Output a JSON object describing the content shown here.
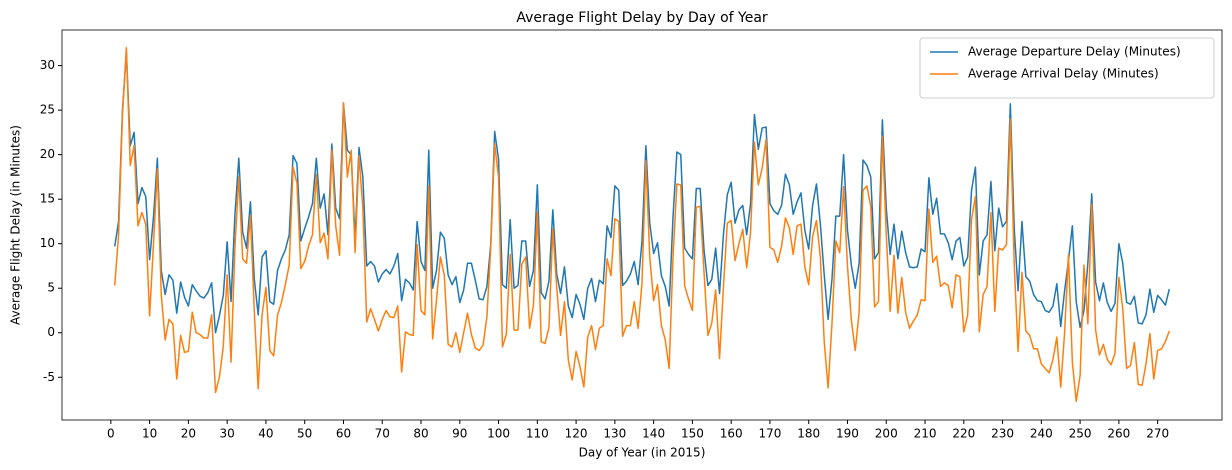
{
  "chart_data": {
    "type": "line",
    "title": "Average Flight Delay by Day of Year",
    "x_label": "Day of Year (in 2015)",
    "y_label": "Average Flight Delay (in Minutes)",
    "legend": "upper right",
    "grid": false,
    "xlim": [
      -12.6,
      286.6
    ],
    "ylim": [
      -9.8,
      34.0
    ],
    "xticks": [
      0,
      10,
      20,
      30,
      40,
      50,
      60,
      70,
      80,
      90,
      100,
      110,
      120,
      130,
      140,
      150,
      160,
      170,
      180,
      190,
      200,
      210,
      220,
      230,
      240,
      250,
      260,
      270
    ],
    "yticks": [
      -5,
      0,
      5,
      10,
      15,
      20,
      25,
      30
    ],
    "x": [
      1,
      2,
      3,
      4,
      5,
      6,
      7,
      8,
      9,
      10,
      11,
      12,
      13,
      14,
      15,
      16,
      17,
      18,
      19,
      20,
      21,
      22,
      23,
      24,
      25,
      26,
      27,
      28,
      29,
      30,
      31,
      32,
      33,
      34,
      35,
      36,
      37,
      38,
      39,
      40,
      41,
      42,
      43,
      44,
      45,
      46,
      47,
      48,
      49,
      50,
      51,
      52,
      53,
      54,
      55,
      56,
      57,
      58,
      59,
      60,
      61,
      62,
      63,
      64,
      65,
      66,
      67,
      68,
      69,
      70,
      71,
      72,
      73,
      74,
      75,
      76,
      77,
      78,
      79,
      80,
      81,
      82,
      83,
      84,
      85,
      86,
      87,
      88,
      89,
      90,
      91,
      92,
      93,
      94,
      95,
      96,
      97,
      98,
      99,
      100,
      101,
      102,
      103,
      104,
      105,
      106,
      107,
      108,
      109,
      110,
      111,
      112,
      113,
      114,
      115,
      116,
      117,
      118,
      119,
      120,
      121,
      122,
      123,
      124,
      125,
      126,
      127,
      128,
      129,
      130,
      131,
      132,
      133,
      134,
      135,
      136,
      137,
      138,
      139,
      140,
      141,
      142,
      143,
      144,
      145,
      146,
      147,
      148,
      149,
      150,
      151,
      152,
      153,
      154,
      155,
      156,
      157,
      158,
      159,
      160,
      161,
      162,
      163,
      164,
      165,
      166,
      167,
      168,
      169,
      170,
      171,
      172,
      173,
      174,
      175,
      176,
      177,
      178,
      179,
      180,
      181,
      182,
      183,
      184,
      185,
      186,
      187,
      188,
      189,
      190,
      191,
      192,
      193,
      194,
      195,
      196,
      197,
      198,
      199,
      200,
      201,
      202,
      203,
      204,
      205,
      206,
      207,
      208,
      209,
      210,
      211,
      212,
      213,
      214,
      215,
      216,
      217,
      218,
      219,
      220,
      221,
      222,
      223,
      224,
      225,
      226,
      227,
      228,
      229,
      230,
      231,
      232,
      233,
      234,
      235,
      236,
      237,
      238,
      239,
      240,
      241,
      242,
      243,
      244,
      245,
      246,
      247,
      248,
      249,
      250,
      251,
      252,
      253,
      254,
      255,
      256,
      257,
      258,
      259,
      260,
      261,
      262,
      263,
      264,
      265,
      266,
      267,
      268,
      269,
      270,
      271,
      272,
      273
    ],
    "series": [
      {
        "name": "Average Departure Delay (Minutes)",
        "color": "#1f77b4",
        "values": [
          9.7,
          12.5,
          25,
          31.5,
          21,
          22.5,
          14.5,
          16.3,
          15.3,
          8.2,
          13,
          19.6,
          7,
          4.3,
          6.5,
          5.9,
          2.2,
          5.7,
          4,
          3,
          5.4,
          4.7,
          4.1,
          3.9,
          4.5,
          5.6,
          0,
          1.9,
          4.2,
          10.2,
          3.5,
          13.2,
          19.6,
          11.3,
          9.5,
          14.7,
          6,
          2,
          8.5,
          9.2,
          3.5,
          3.2,
          7,
          8.3,
          9.3,
          11,
          19.9,
          19,
          10.3,
          11.7,
          13,
          14.5,
          19.6,
          14,
          15.6,
          11,
          21.2,
          14,
          12.8,
          25.8,
          20.5,
          20,
          10.5,
          20.8,
          17.5,
          7.5,
          8,
          7.5,
          5.7,
          6.6,
          7.1,
          6.6,
          7.5,
          8.9,
          3.6,
          6,
          5.6,
          4.8,
          12.5,
          8,
          7,
          20.5,
          5,
          7,
          11.3,
          10.6,
          6.5,
          5.4,
          6.3,
          3.4,
          4.8,
          7.8,
          7.8,
          5.9,
          3.8,
          3.7,
          5.2,
          10,
          22.6,
          19.5,
          5.4,
          5,
          12.7,
          5,
          5.3,
          10.3,
          10.3,
          5.2,
          7,
          16.6,
          4.5,
          3.8,
          5.8,
          13.8,
          6.6,
          4.4,
          7.4,
          3,
          1.7,
          4.3,
          3.2,
          1.5,
          5,
          6.1,
          3.5,
          5.9,
          5.5,
          12,
          10.7,
          16.5,
          16,
          5.3,
          5.8,
          6.6,
          8,
          5.4,
          10.3,
          21,
          12.3,
          8.9,
          10.1,
          6.4,
          5.2,
          3,
          13,
          20.3,
          20,
          9.5,
          8.8,
          8.3,
          16.2,
          16.2,
          9.3,
          5.3,
          6,
          9.5,
          4.4,
          11,
          15.5,
          16.9,
          12.3,
          13.8,
          14.3,
          11,
          14.5,
          24.5,
          20.6,
          23,
          23.1,
          14.5,
          13.7,
          13.3,
          14.3,
          17.8,
          16.6,
          13.3,
          14.7,
          15.7,
          11.5,
          9.4,
          14.3,
          16.7,
          12.2,
          6.5,
          1.5,
          6,
          13.1,
          13.1,
          20,
          11.5,
          7.6,
          5,
          7.8,
          19.4,
          18.8,
          17.5,
          8.3,
          9,
          23.9,
          14,
          8.8,
          12.2,
          8.3,
          11.4,
          9,
          7.4,
          7.3,
          7.4,
          9.4,
          9.1,
          17.4,
          13.3,
          15.1,
          11.1,
          11.1,
          10.1,
          8.2,
          10.3,
          10.7,
          7.5,
          8.5,
          16,
          18.6,
          6.5,
          10.3,
          11,
          17,
          9.2,
          14,
          11.9,
          12.5,
          25.7,
          11.8,
          4.7,
          12.5,
          6.3,
          5.8,
          4.3,
          3.6,
          3.5,
          2.5,
          2.3,
          3,
          5.5,
          0.7,
          4.7,
          8.1,
          12,
          3.5,
          0.6,
          2.5,
          7.8,
          15.6,
          5.7,
          3.6,
          5.6,
          3.4,
          2.4,
          3.3,
          10,
          7.8,
          3.4,
          3.2,
          4.1,
          1.1,
          1,
          2,
          4.9,
          2.3,
          4.2,
          3.7,
          3.1,
          4.9
        ]
      },
      {
        "name": "Average Arrival Delay (Minutes)",
        "color": "#ff7f0e",
        "values": [
          5.3,
          11,
          24.5,
          32,
          18.8,
          21,
          12,
          13.5,
          12.2,
          1.9,
          10,
          18.4,
          4.3,
          -0.8,
          1.5,
          1,
          -5.2,
          -0.3,
          -2.2,
          -2.1,
          2.3,
          0,
          -0.2,
          -0.6,
          -0.6,
          2,
          -6.7,
          -5,
          -1.5,
          6.5,
          -3.3,
          9.5,
          17.5,
          8.3,
          7.8,
          13.2,
          2.4,
          -6.3,
          2,
          5.1,
          -2,
          -2.6,
          2,
          3.4,
          5.4,
          7.6,
          18.6,
          16.8,
          7.2,
          8,
          9.7,
          11,
          17.8,
          10.1,
          11.2,
          8.3,
          20.5,
          12,
          8.7,
          25.8,
          17.5,
          20.5,
          9,
          19.9,
          14,
          1.2,
          2.7,
          1.5,
          0.2,
          1.5,
          2.5,
          1.8,
          1.7,
          3,
          -4.4,
          0.1,
          -0.2,
          -0.3,
          9.9,
          2.5,
          2,
          16.5,
          -0.7,
          3.7,
          8.5,
          6.5,
          -1.3,
          -1.6,
          0,
          -2.2,
          0,
          2.2,
          -0.2,
          -1.7,
          -2,
          -1.4,
          1.8,
          9.7,
          21.2,
          17.5,
          -1.6,
          -0.2,
          8.8,
          0.3,
          0.3,
          7.7,
          8.5,
          0.5,
          3.1,
          13.5,
          -1,
          -1.2,
          0.6,
          11.6,
          5.1,
          -0.3,
          3.5,
          -3.1,
          -5.3,
          -2.1,
          -3.8,
          -6.1,
          -0.5,
          0.8,
          -1.9,
          0.5,
          0.8,
          8.3,
          6.4,
          12.8,
          12.5,
          -0.4,
          0.8,
          0.8,
          3.5,
          0.5,
          5.6,
          19.3,
          8.5,
          3.6,
          5.4,
          0.8,
          -0.8,
          -4,
          8.5,
          16.7,
          16.6,
          5.3,
          3.8,
          2.5,
          14.1,
          14.2,
          6.8,
          -0.3,
          1.1,
          4.8,
          -2.9,
          5.1,
          12.3,
          12.6,
          8.1,
          10,
          11.6,
          7.3,
          11.3,
          21.4,
          16.6,
          18.5,
          21.7,
          9.6,
          9.3,
          7.9,
          9.7,
          12.9,
          11.8,
          8.8,
          12,
          12.2,
          7.4,
          5.4,
          10.8,
          12.6,
          8.5,
          -1,
          -6.2,
          1,
          10.3,
          9,
          16.4,
          7.5,
          1.4,
          -2,
          2.3,
          16,
          16.5,
          14.2,
          2.9,
          3.5,
          22.1,
          11.1,
          2.4,
          8.7,
          2.2,
          6.2,
          2.3,
          0.5,
          1.3,
          2,
          3.7,
          3.6,
          13.9,
          7.9,
          8.6,
          5.2,
          5.6,
          5.3,
          2.8,
          6.5,
          6.3,
          0.1,
          2,
          12.7,
          15.3,
          0.1,
          4.3,
          5.2,
          13.5,
          2.4,
          9.5,
          9.3,
          9.9,
          24,
          7.8,
          -2.1,
          6.8,
          0.2,
          -0.3,
          -1.8,
          -1.8,
          -3.5,
          -4,
          -4.5,
          -3,
          -0.5,
          -6.1,
          0,
          8.8,
          -3.3,
          -7.7,
          -4.8,
          7.6,
          1,
          14.4,
          0.3,
          -2.5,
          -1.3,
          -3,
          -3.6,
          -2.3,
          6.2,
          2.7,
          -4,
          -3.7,
          -1.1,
          -5.8,
          -5.9,
          -3.5,
          -0.1,
          -5.2,
          -2,
          -1.8,
          -1,
          0.2
        ]
      }
    ]
  }
}
